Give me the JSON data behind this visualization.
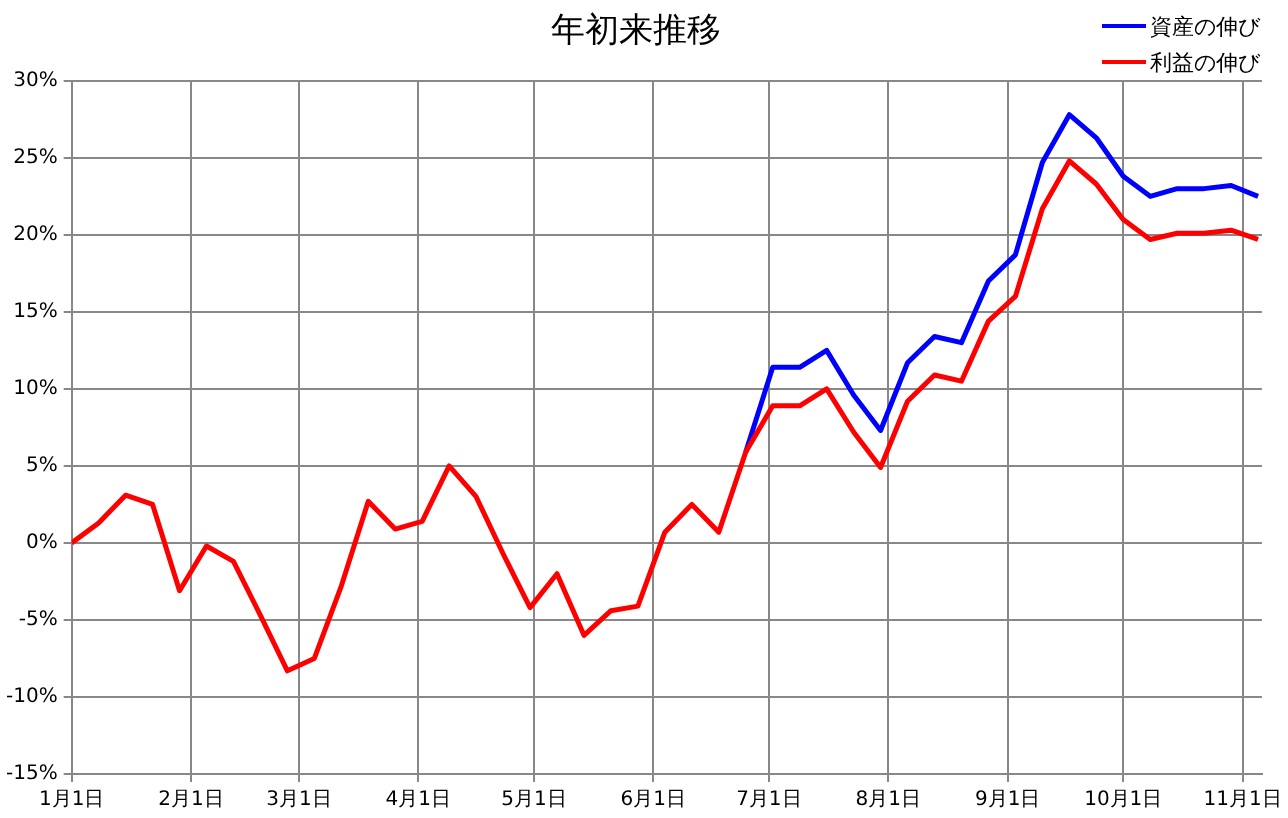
{
  "chart_data": {
    "type": "line",
    "title": "年初来推移",
    "x": [
      "--01-01",
      "--01-08",
      "--01-15",
      "--01-22",
      "--01-29",
      "--02-05",
      "--02-12",
      "--02-19",
      "--02-26",
      "--03-05",
      "--03-12",
      "--03-19",
      "--03-26",
      "--04-02",
      "--04-09",
      "--04-16",
      "--04-23",
      "--04-30",
      "--05-07",
      "--05-14",
      "--05-21",
      "--05-28",
      "--06-04",
      "--06-11",
      "--06-18",
      "--06-25",
      "--07-02",
      "--07-09",
      "--07-16",
      "--07-23",
      "--07-30",
      "--08-06",
      "--08-13",
      "--08-20",
      "--08-27",
      "--09-03",
      "--09-10",
      "--09-17",
      "--09-24",
      "--10-01",
      "--10-08",
      "--10-15",
      "--10-22",
      "--10-29",
      "--11-05"
    ],
    "series": [
      {
        "name": "資産の伸び",
        "color": "#0000ff",
        "values": [
          null,
          null,
          null,
          null,
          null,
          null,
          null,
          null,
          null,
          null,
          null,
          null,
          null,
          null,
          null,
          null,
          null,
          null,
          null,
          null,
          null,
          null,
          null,
          null,
          null,
          5.9,
          11.4,
          11.4,
          12.5,
          9.6,
          7.3,
          11.7,
          13.4,
          13.0,
          17.0,
          18.7,
          24.7,
          27.8,
          26.3,
          23.8,
          22.5,
          23.0,
          23.0,
          23.2,
          22.5
        ]
      },
      {
        "name": "利益の伸び",
        "color": "#ff0000",
        "values": [
          0,
          1.3,
          3.1,
          2.5,
          -3.1,
          -0.2,
          -1.2,
          -4.7,
          -8.3,
          -7.5,
          -2.8,
          2.7,
          0.9,
          1.4,
          5.0,
          3.0,
          -0.7,
          -4.2,
          -2.0,
          -6.0,
          -4.4,
          -4.1,
          0.7,
          2.5,
          0.7,
          5.9,
          8.9,
          8.9,
          10.0,
          7.2,
          4.9,
          9.2,
          10.9,
          10.5,
          14.4,
          16.0,
          21.7,
          24.8,
          23.3,
          21.0,
          19.7,
          20.1,
          20.1,
          20.3,
          19.7
        ]
      }
    ],
    "xlim": [
      "--01-01",
      "--11-06"
    ],
    "xticks": [
      {
        "value": "--01-01",
        "label": "1月1日"
      },
      {
        "value": "--02-01",
        "label": "2月1日"
      },
      {
        "value": "--03-01",
        "label": "3月1日"
      },
      {
        "value": "--04-01",
        "label": "4月1日"
      },
      {
        "value": "--05-01",
        "label": "5月1日"
      },
      {
        "value": "--06-01",
        "label": "6月1日"
      },
      {
        "value": "--07-01",
        "label": "7月1日"
      },
      {
        "value": "--08-01",
        "label": "8月1日"
      },
      {
        "value": "--09-01",
        "label": "9月1日"
      },
      {
        "value": "--10-01",
        "label": "10月1日"
      },
      {
        "value": "--11-01",
        "label": "11月1日"
      }
    ],
    "ylim": [
      -15,
      30
    ],
    "yticks": [
      {
        "value": -15,
        "label": "-15%"
      },
      {
        "value": -10,
        "label": "-10%"
      },
      {
        "value": -5,
        "label": "-5%"
      },
      {
        "value": 0,
        "label": "0%"
      },
      {
        "value": 5,
        "label": "5%"
      },
      {
        "value": 10,
        "label": "10%"
      },
      {
        "value": 15,
        "label": "15%"
      },
      {
        "value": 20,
        "label": "20%"
      },
      {
        "value": 25,
        "label": "25%"
      },
      {
        "value": 30,
        "label": "30%"
      }
    ],
    "grid": true,
    "legend": "top right",
    "marker": "none",
    "line_style": "solid"
  }
}
